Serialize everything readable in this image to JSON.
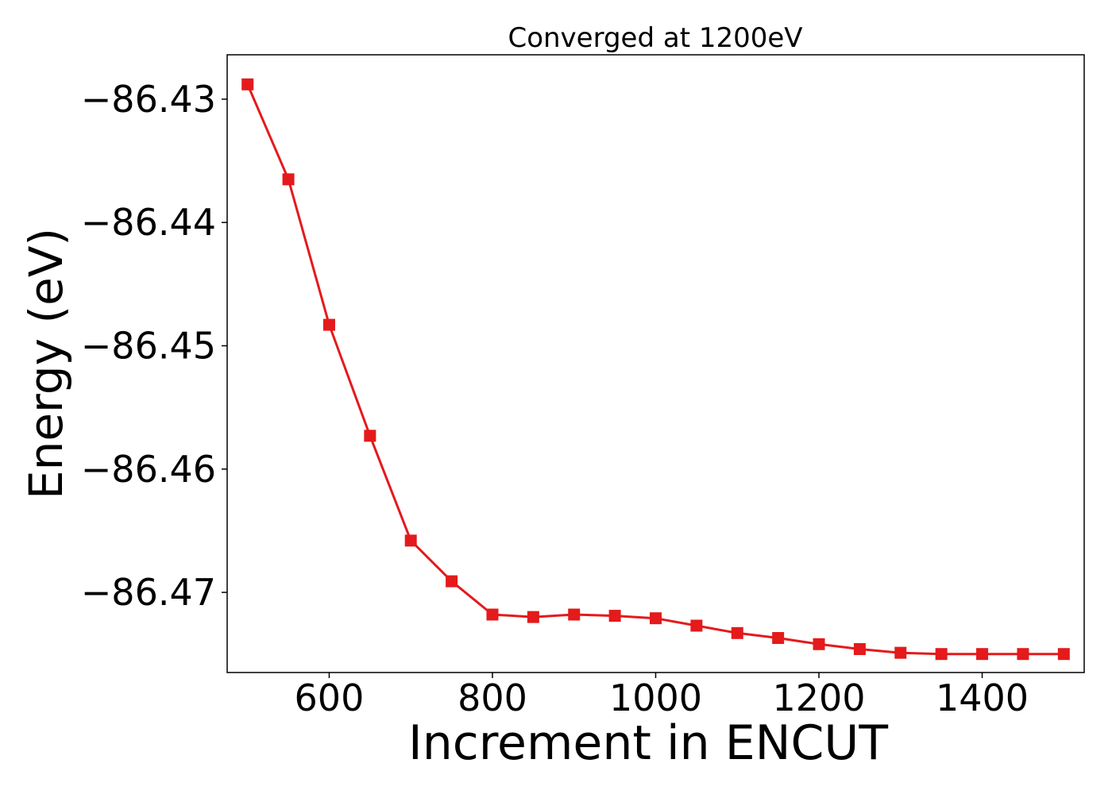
{
  "chart_data": {
    "type": "line",
    "title": "Converged at 1200eV",
    "xlabel": "Increment in ENCUT",
    "ylabel": "Energy (eV)",
    "xlim": [
      475,
      1525
    ],
    "ylim": [
      -86.4765,
      -86.4264
    ],
    "xticks": [
      600,
      800,
      1000,
      1200,
      1400
    ],
    "xtick_labels": [
      "600",
      "800",
      "1000",
      "1200",
      "1400"
    ],
    "yticks": [
      -86.43,
      -86.44,
      -86.45,
      -86.46,
      -86.47
    ],
    "ytick_labels": [
      "−86.43",
      "−86.44",
      "−86.45",
      "−86.46",
      "−86.47"
    ],
    "grid": false,
    "series": [
      {
        "color": "#e41a1c",
        "marker": "square",
        "x": [
          500,
          550,
          600,
          650,
          700,
          750,
          800,
          850,
          900,
          950,
          1000,
          1050,
          1100,
          1150,
          1200,
          1250,
          1300,
          1350,
          1400,
          1450,
          1500
        ],
        "y": [
          -86.4288,
          -86.4365,
          -86.4483,
          -86.4573,
          -86.4658,
          -86.4691,
          -86.4718,
          -86.472,
          -86.4718,
          -86.4719,
          -86.4721,
          -86.4727,
          -86.4733,
          -86.4737,
          -86.4742,
          -86.4746,
          -86.4749,
          -86.475,
          -86.475,
          -86.475,
          -86.475
        ]
      }
    ]
  }
}
